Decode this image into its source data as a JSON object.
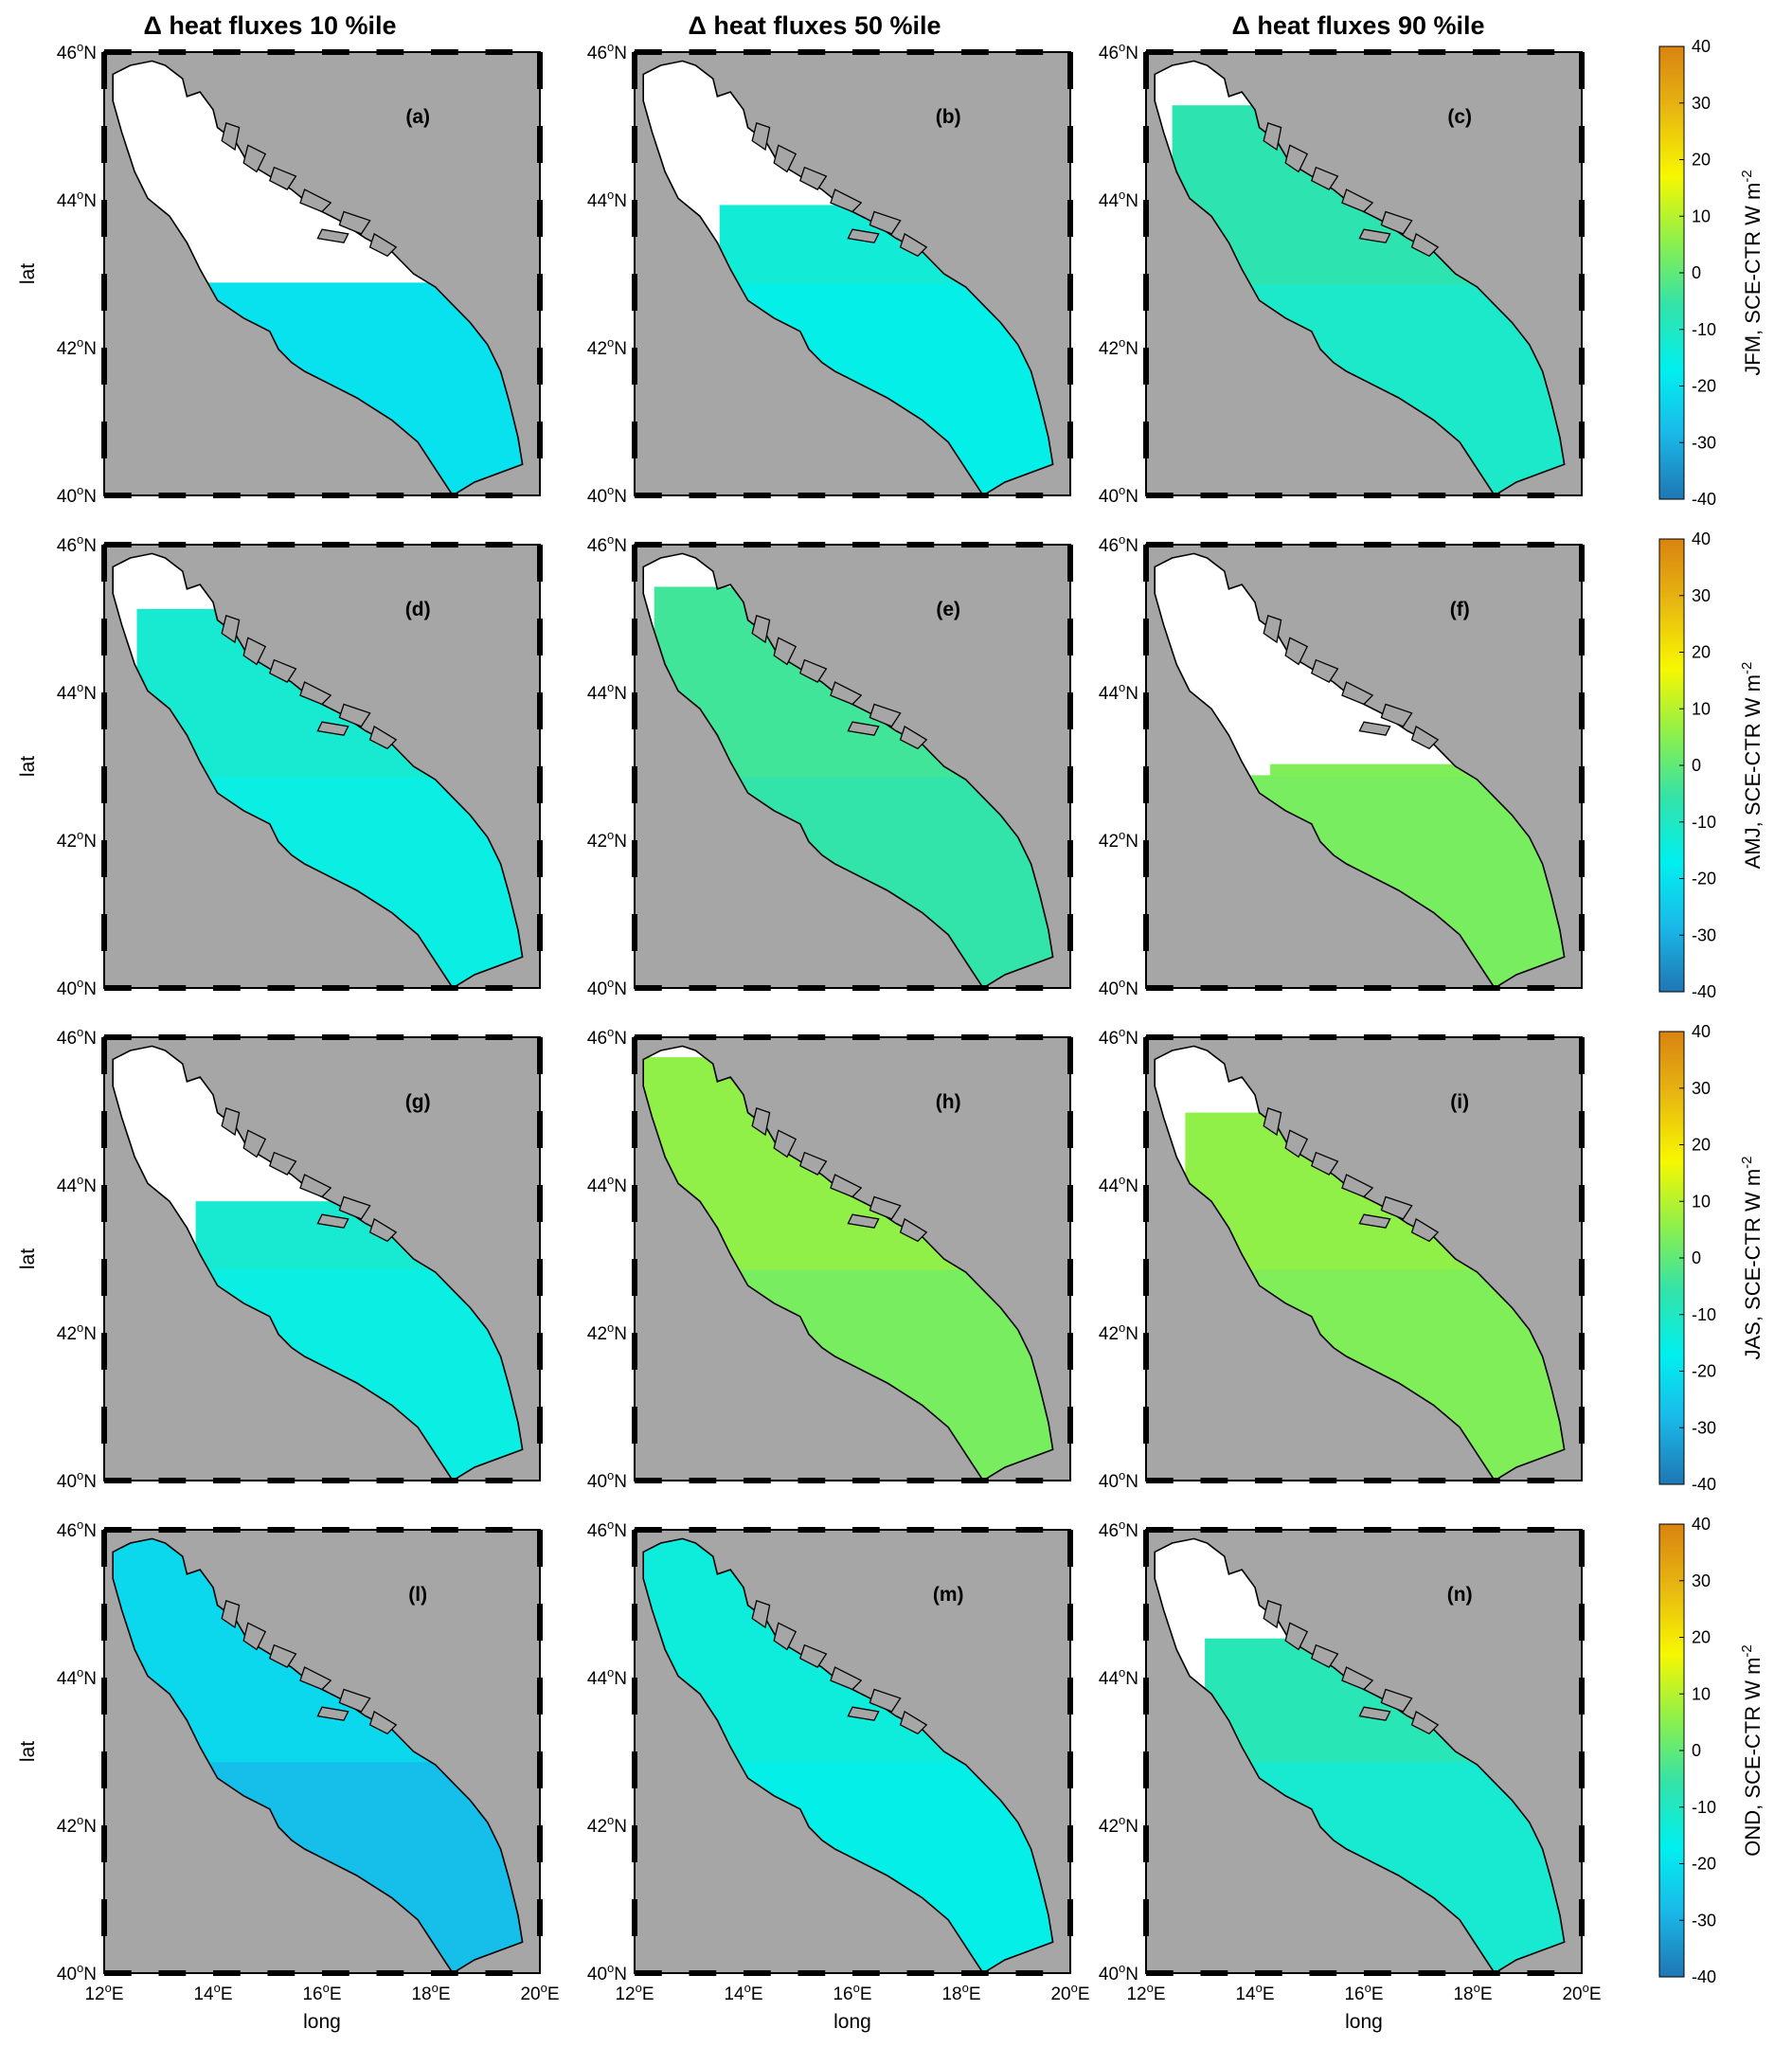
{
  "column_titles": [
    "Δ heat fluxes 10 %ile",
    "Δ heat fluxes 50 %ile",
    "Δ heat fluxes 90 %ile"
  ],
  "axes": {
    "xlabel": "long",
    "ylabel": "lat",
    "lon_range": [
      12,
      20
    ],
    "lat_range": [
      40,
      46
    ],
    "xticks": [
      {
        "value": 12,
        "label": "12°E"
      },
      {
        "value": 14,
        "label": "14°E"
      },
      {
        "value": 16,
        "label": "16°E"
      },
      {
        "value": 18,
        "label": "18°E"
      },
      {
        "value": 20,
        "label": "20°E"
      }
    ],
    "yticks": [
      {
        "value": 46,
        "label": "46°N"
      },
      {
        "value": 44,
        "label": "44°N"
      },
      {
        "value": 42,
        "label": "42°N"
      },
      {
        "value": 40,
        "label": "40°N"
      }
    ]
  },
  "colorbar": {
    "range": [
      -40,
      40
    ],
    "ticks": [
      "40",
      "30",
      "20",
      "10",
      "0",
      "-10",
      "-20",
      "-30",
      "-40"
    ],
    "colormap_stops": [
      "#1f77b4",
      "#1ab7e8",
      "#00f0f0",
      "#33e3a8",
      "#8ef04a",
      "#f7f700",
      "#e8b810",
      "#d98310"
    ],
    "land_color": "#a6a6a6",
    "nonsignificant_color": "#ffffff"
  },
  "rows": [
    {
      "season_label": "JFM, SCE-CTR W m",
      "unit_superscript": "-2",
      "panels": [
        {
          "label": "(a)",
          "south_value": -20,
          "north_value": null,
          "north_coverage": 0.15
        },
        {
          "label": "(b)",
          "south_value": -16,
          "north_value": -13,
          "north_coverage": 0.35
        },
        {
          "label": "(c)",
          "south_value": -11,
          "north_value": -7,
          "north_coverage": 0.8
        }
      ]
    },
    {
      "season_label": "AMJ, SCE-CTR W m",
      "unit_superscript": "-2",
      "panels": [
        {
          "label": "(d)",
          "south_value": -15,
          "north_value": -12,
          "north_coverage": 0.75
        },
        {
          "label": "(e)",
          "south_value": -6,
          "north_value": -4,
          "north_coverage": 0.85
        },
        {
          "label": "(f)",
          "south_value": 3,
          "north_value": 4,
          "north_coverage": 0.05
        }
      ]
    },
    {
      "season_label": "JAS, SCE-CTR W m",
      "unit_superscript": "-2",
      "panels": [
        {
          "label": "(g)",
          "south_value": -15,
          "north_value": -12,
          "north_coverage": 0.3
        },
        {
          "label": "(h)",
          "south_value": 3,
          "north_value": 6,
          "north_coverage": 0.95
        },
        {
          "label": "(i)",
          "south_value": 4,
          "north_value": 6,
          "north_coverage": 0.7
        }
      ]
    },
    {
      "season_label": "OND, SCE-CTR W m",
      "unit_superscript": "-2",
      "panels": [
        {
          "label": "(l)",
          "south_value": -27,
          "north_value": -22,
          "north_coverage": 1.0
        },
        {
          "label": "(m)",
          "south_value": -16,
          "north_value": -14,
          "north_coverage": 1.0
        },
        {
          "label": "(n)",
          "south_value": -12,
          "north_value": -8,
          "north_coverage": 0.55
        }
      ]
    }
  ]
}
